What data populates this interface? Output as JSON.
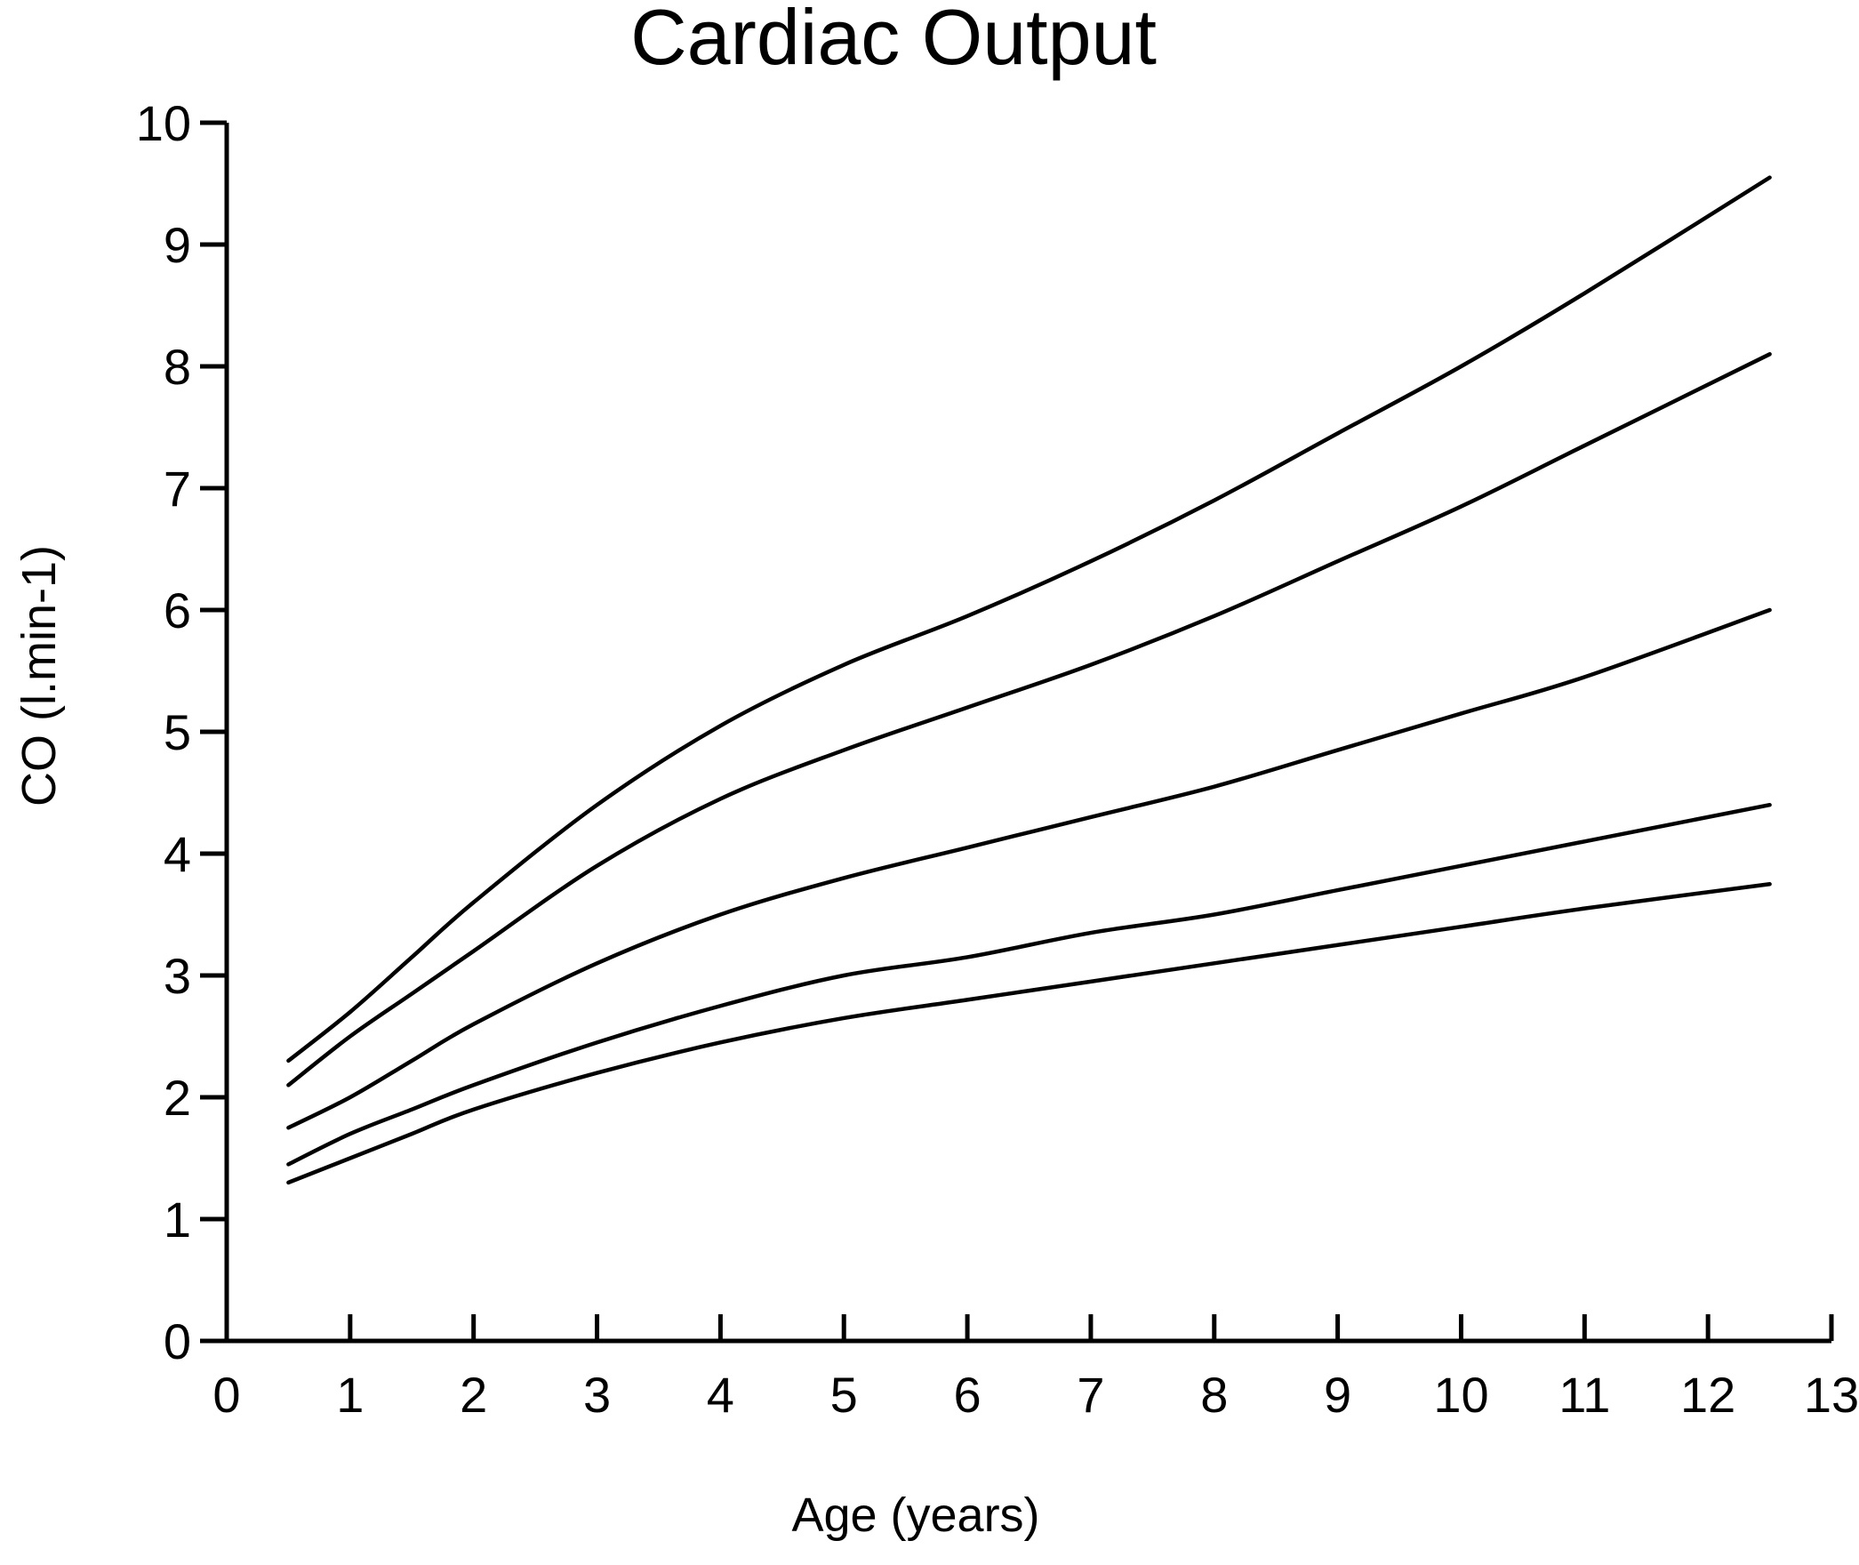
{
  "chart_data": {
    "type": "line",
    "title": "Cardiac Output",
    "xlabel": "Age  (years)",
    "ylabel": "CO (l.min-1)",
    "xlim": [
      0,
      13
    ],
    "ylim": [
      0,
      10
    ],
    "xticks": [
      "0",
      "1",
      "2",
      "3",
      "4",
      "5",
      "6",
      "7",
      "8",
      "9",
      "10",
      "11",
      "12",
      "13"
    ],
    "yticks": [
      "0",
      "1",
      "2",
      "3",
      "4",
      "5",
      "6",
      "7",
      "8",
      "9",
      "10"
    ],
    "grid": false,
    "legend": "none",
    "line_color": "#000000",
    "x": [
      0.5,
      1,
      1.5,
      2,
      3,
      4,
      5,
      6,
      7,
      8,
      9,
      10,
      11,
      12.5
    ],
    "series": [
      {
        "values": [
          2.3,
          2.7,
          3.15,
          3.6,
          4.4,
          5.05,
          5.55,
          5.95,
          6.4,
          6.9,
          7.45,
          8.0,
          8.6,
          9.55
        ]
      },
      {
        "values": [
          2.1,
          2.5,
          2.85,
          3.2,
          3.9,
          4.45,
          4.85,
          5.2,
          5.55,
          5.95,
          6.4,
          6.85,
          7.35,
          8.1
        ]
      },
      {
        "values": [
          1.75,
          2.0,
          2.3,
          2.6,
          3.1,
          3.5,
          3.8,
          4.05,
          4.3,
          4.55,
          4.85,
          5.15,
          5.45,
          6.0
        ]
      },
      {
        "values": [
          1.45,
          1.7,
          1.9,
          2.1,
          2.45,
          2.75,
          3.0,
          3.15,
          3.35,
          3.5,
          3.7,
          3.9,
          4.1,
          4.4
        ]
      },
      {
        "values": [
          1.3,
          1.5,
          1.7,
          1.9,
          2.2,
          2.45,
          2.65,
          2.8,
          2.95,
          3.1,
          3.25,
          3.4,
          3.55,
          3.75
        ]
      }
    ]
  }
}
